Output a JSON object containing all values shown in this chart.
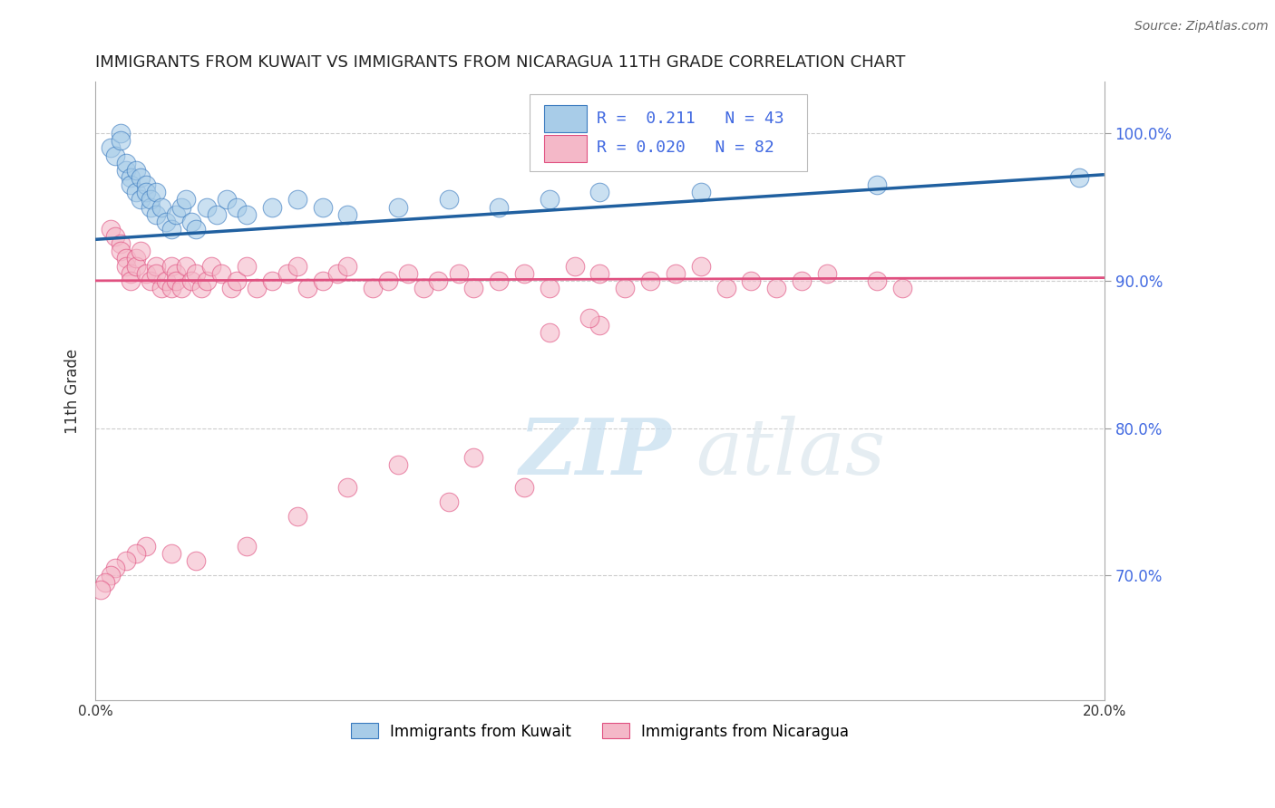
{
  "title": "IMMIGRANTS FROM KUWAIT VS IMMIGRANTS FROM NICARAGUA 11TH GRADE CORRELATION CHART",
  "source_text": "Source: ZipAtlas.com",
  "ylabel": "11th Grade",
  "x_min": 0.0,
  "x_max": 0.2,
  "y_min": 0.615,
  "y_max": 1.035,
  "yticks": [
    0.7,
    0.8,
    0.9,
    1.0
  ],
  "ytick_labels": [
    "70.0%",
    "80.0%",
    "90.0%",
    "100.0%"
  ],
  "xticks": [
    0.0,
    0.05,
    0.1,
    0.15,
    0.2
  ],
  "xtick_labels": [
    "0.0%",
    "",
    "",
    "",
    "20.0%"
  ],
  "kuwait_R": 0.211,
  "kuwait_N": 43,
  "nicaragua_R": 0.02,
  "nicaragua_N": 82,
  "blue_fill": "#a8cce8",
  "blue_edge": "#3a7abf",
  "pink_fill": "#f4b8c8",
  "pink_edge": "#e05080",
  "blue_line_color": "#2060a0",
  "pink_line_color": "#e05080",
  "tick_label_color": "#4169e1",
  "watermark": "ZIPatlas",
  "kuwait_line_x0": 0.0,
  "kuwait_line_y0": 0.928,
  "kuwait_line_x1": 0.2,
  "kuwait_line_y1": 0.972,
  "nicaragua_line_x0": 0.0,
  "nicaragua_line_y0": 0.9,
  "nicaragua_line_x1": 0.2,
  "nicaragua_line_y1": 0.902,
  "kuwait_x": [
    0.003,
    0.004,
    0.005,
    0.005,
    0.006,
    0.006,
    0.007,
    0.007,
    0.008,
    0.008,
    0.009,
    0.009,
    0.01,
    0.01,
    0.011,
    0.011,
    0.012,
    0.012,
    0.013,
    0.014,
    0.015,
    0.016,
    0.017,
    0.018,
    0.019,
    0.02,
    0.022,
    0.024,
    0.026,
    0.028,
    0.03,
    0.035,
    0.04,
    0.045,
    0.05,
    0.06,
    0.07,
    0.08,
    0.09,
    0.1,
    0.12,
    0.155,
    0.195
  ],
  "kuwait_y": [
    0.99,
    0.985,
    1.0,
    0.995,
    0.975,
    0.98,
    0.97,
    0.965,
    0.96,
    0.975,
    0.955,
    0.97,
    0.965,
    0.96,
    0.95,
    0.955,
    0.945,
    0.96,
    0.95,
    0.94,
    0.935,
    0.945,
    0.95,
    0.955,
    0.94,
    0.935,
    0.95,
    0.945,
    0.955,
    0.95,
    0.945,
    0.95,
    0.955,
    0.95,
    0.945,
    0.95,
    0.955,
    0.95,
    0.955,
    0.96,
    0.96,
    0.965,
    0.97
  ],
  "nicaragua_x": [
    0.003,
    0.004,
    0.005,
    0.005,
    0.006,
    0.006,
    0.007,
    0.007,
    0.008,
    0.008,
    0.009,
    0.01,
    0.011,
    0.012,
    0.012,
    0.013,
    0.014,
    0.015,
    0.015,
    0.016,
    0.016,
    0.017,
    0.018,
    0.019,
    0.02,
    0.021,
    0.022,
    0.023,
    0.025,
    0.027,
    0.028,
    0.03,
    0.032,
    0.035,
    0.038,
    0.04,
    0.042,
    0.045,
    0.048,
    0.05,
    0.055,
    0.058,
    0.062,
    0.065,
    0.068,
    0.072,
    0.075,
    0.08,
    0.085,
    0.09,
    0.095,
    0.1,
    0.105,
    0.11,
    0.115,
    0.12,
    0.125,
    0.13,
    0.135,
    0.14,
    0.145,
    0.155,
    0.16,
    0.1,
    0.098,
    0.09,
    0.085,
    0.075,
    0.07,
    0.06,
    0.05,
    0.04,
    0.03,
    0.02,
    0.015,
    0.01,
    0.008,
    0.006,
    0.004,
    0.003,
    0.002,
    0.001
  ],
  "nicaragua_y": [
    0.935,
    0.93,
    0.925,
    0.92,
    0.915,
    0.91,
    0.905,
    0.9,
    0.915,
    0.91,
    0.92,
    0.905,
    0.9,
    0.91,
    0.905,
    0.895,
    0.9,
    0.91,
    0.895,
    0.905,
    0.9,
    0.895,
    0.91,
    0.9,
    0.905,
    0.895,
    0.9,
    0.91,
    0.905,
    0.895,
    0.9,
    0.91,
    0.895,
    0.9,
    0.905,
    0.91,
    0.895,
    0.9,
    0.905,
    0.91,
    0.895,
    0.9,
    0.905,
    0.895,
    0.9,
    0.905,
    0.895,
    0.9,
    0.905,
    0.895,
    0.91,
    0.905,
    0.895,
    0.9,
    0.905,
    0.91,
    0.895,
    0.9,
    0.895,
    0.9,
    0.905,
    0.9,
    0.895,
    0.87,
    0.875,
    0.865,
    0.76,
    0.78,
    0.75,
    0.775,
    0.76,
    0.74,
    0.72,
    0.71,
    0.715,
    0.72,
    0.715,
    0.71,
    0.705,
    0.7,
    0.695,
    0.69
  ]
}
